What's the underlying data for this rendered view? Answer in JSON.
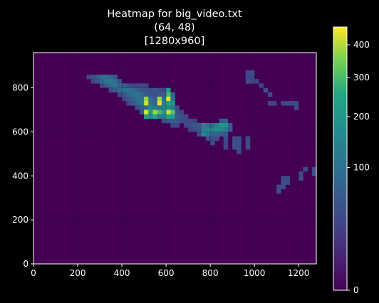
{
  "chart_data": {
    "type": "heatmap",
    "title_lines": [
      "Heatmap for big_video.txt",
      "(64, 48)",
      "[1280x960]"
    ],
    "grid_shape": [
      64,
      48
    ],
    "xlim": [
      0,
      1280
    ],
    "ylim": [
      0,
      960
    ],
    "x_ticks": [
      0,
      200,
      400,
      600,
      800,
      1000,
      1200
    ],
    "y_ticks": [
      0,
      200,
      400,
      600,
      800
    ],
    "colorbar": {
      "scale": "sqrt",
      "range": [
        0,
        460
      ],
      "ticks": [
        0,
        100,
        200,
        300,
        400
      ],
      "colormap": "viridis"
    },
    "grid": true,
    "background_value": 0,
    "cells": [
      [
        240,
        840,
        30
      ],
      [
        260,
        840,
        45
      ],
      [
        280,
        840,
        60
      ],
      [
        300,
        840,
        90
      ],
      [
        320,
        840,
        100
      ],
      [
        340,
        840,
        80
      ],
      [
        360,
        840,
        50
      ],
      [
        260,
        820,
        30
      ],
      [
        280,
        820,
        50
      ],
      [
        300,
        820,
        80
      ],
      [
        320,
        820,
        110
      ],
      [
        340,
        820,
        120
      ],
      [
        360,
        820,
        90
      ],
      [
        380,
        820,
        40
      ],
      [
        300,
        800,
        40
      ],
      [
        320,
        800,
        60
      ],
      [
        340,
        800,
        90
      ],
      [
        360,
        800,
        110
      ],
      [
        380,
        800,
        80
      ],
      [
        400,
        800,
        60
      ],
      [
        420,
        800,
        40
      ],
      [
        440,
        800,
        30
      ],
      [
        460,
        800,
        30
      ],
      [
        480,
        800,
        30
      ],
      [
        500,
        800,
        30
      ],
      [
        340,
        780,
        40
      ],
      [
        360,
        780,
        60
      ],
      [
        380,
        780,
        90
      ],
      [
        400,
        780,
        100
      ],
      [
        420,
        780,
        110
      ],
      [
        440,
        780,
        90
      ],
      [
        460,
        780,
        70
      ],
      [
        480,
        780,
        50
      ],
      [
        500,
        780,
        50
      ],
      [
        520,
        780,
        40
      ],
      [
        540,
        780,
        60
      ],
      [
        560,
        780,
        40
      ],
      [
        580,
        780,
        30
      ],
      [
        600,
        780,
        220
      ],
      [
        380,
        760,
        40
      ],
      [
        400,
        760,
        50
      ],
      [
        420,
        760,
        80
      ],
      [
        440,
        760,
        100
      ],
      [
        460,
        760,
        110
      ],
      [
        480,
        760,
        90
      ],
      [
        500,
        760,
        60
      ],
      [
        520,
        760,
        50
      ],
      [
        540,
        760,
        40
      ],
      [
        560,
        760,
        50
      ],
      [
        580,
        760,
        60
      ],
      [
        600,
        760,
        300
      ],
      [
        620,
        760,
        80
      ],
      [
        400,
        740,
        30
      ],
      [
        420,
        740,
        50
      ],
      [
        440,
        740,
        70
      ],
      [
        460,
        740,
        90
      ],
      [
        480,
        740,
        100
      ],
      [
        500,
        740,
        380
      ],
      [
        520,
        740,
        90
      ],
      [
        540,
        740,
        60
      ],
      [
        560,
        740,
        380
      ],
      [
        580,
        740,
        100
      ],
      [
        600,
        740,
        440
      ],
      [
        620,
        740,
        100
      ],
      [
        420,
        720,
        30
      ],
      [
        440,
        720,
        50
      ],
      [
        460,
        720,
        80
      ],
      [
        480,
        720,
        120
      ],
      [
        500,
        720,
        420
      ],
      [
        520,
        720,
        110
      ],
      [
        540,
        720,
        70
      ],
      [
        560,
        720,
        440
      ],
      [
        580,
        720,
        130
      ],
      [
        600,
        720,
        240
      ],
      [
        620,
        720,
        200
      ],
      [
        460,
        700,
        40
      ],
      [
        480,
        700,
        60
      ],
      [
        500,
        700,
        90
      ],
      [
        520,
        700,
        150
      ],
      [
        540,
        700,
        110
      ],
      [
        560,
        700,
        100
      ],
      [
        580,
        700,
        140
      ],
      [
        600,
        700,
        170
      ],
      [
        620,
        700,
        120
      ],
      [
        640,
        700,
        40
      ],
      [
        480,
        680,
        50
      ],
      [
        500,
        680,
        430
      ],
      [
        520,
        680,
        200
      ],
      [
        540,
        680,
        380
      ],
      [
        560,
        680,
        300
      ],
      [
        580,
        680,
        200
      ],
      [
        600,
        680,
        420
      ],
      [
        620,
        680,
        320
      ],
      [
        640,
        680,
        40
      ],
      [
        660,
        680,
        30
      ],
      [
        500,
        660,
        230
      ],
      [
        520,
        660,
        160
      ],
      [
        540,
        660,
        240
      ],
      [
        560,
        660,
        130
      ],
      [
        580,
        660,
        120
      ],
      [
        600,
        660,
        250
      ],
      [
        620,
        660,
        220
      ],
      [
        640,
        660,
        60
      ],
      [
        660,
        660,
        40
      ],
      [
        680,
        660,
        30
      ],
      [
        580,
        640,
        40
      ],
      [
        600,
        640,
        50
      ],
      [
        620,
        640,
        60
      ],
      [
        640,
        640,
        50
      ],
      [
        660,
        640,
        40
      ],
      [
        680,
        640,
        30
      ],
      [
        700,
        640,
        30
      ],
      [
        720,
        640,
        30
      ],
      [
        840,
        640,
        60
      ],
      [
        860,
        640,
        60
      ],
      [
        620,
        620,
        30
      ],
      [
        640,
        620,
        40
      ],
      [
        680,
        620,
        30
      ],
      [
        700,
        620,
        40
      ],
      [
        720,
        620,
        50
      ],
      [
        740,
        620,
        60
      ],
      [
        760,
        620,
        140
      ],
      [
        780,
        620,
        100
      ],
      [
        800,
        620,
        90
      ],
      [
        820,
        620,
        140
      ],
      [
        840,
        620,
        200
      ],
      [
        860,
        620,
        180
      ],
      [
        880,
        620,
        60
      ],
      [
        700,
        600,
        30
      ],
      [
        720,
        600,
        40
      ],
      [
        740,
        600,
        50
      ],
      [
        760,
        600,
        130
      ],
      [
        780,
        600,
        150
      ],
      [
        800,
        600,
        140
      ],
      [
        820,
        600,
        180
      ],
      [
        840,
        600,
        160
      ],
      [
        860,
        600,
        120
      ],
      [
        880,
        600,
        60
      ],
      [
        740,
        580,
        40
      ],
      [
        760,
        580,
        170
      ],
      [
        780,
        580,
        110
      ],
      [
        800,
        580,
        80
      ],
      [
        820,
        580,
        70
      ],
      [
        840,
        580,
        60
      ],
      [
        860,
        580,
        50
      ],
      [
        780,
        560,
        40
      ],
      [
        800,
        560,
        40
      ],
      [
        820,
        560,
        40
      ],
      [
        860,
        560,
        40
      ],
      [
        900,
        560,
        40
      ],
      [
        920,
        560,
        40
      ],
      [
        960,
        560,
        40
      ],
      [
        800,
        540,
        40
      ],
      [
        860,
        540,
        30
      ],
      [
        900,
        540,
        40
      ],
      [
        920,
        540,
        40
      ],
      [
        960,
        540,
        40
      ],
      [
        860,
        520,
        30
      ],
      [
        900,
        520,
        40
      ],
      [
        920,
        520,
        40
      ],
      [
        960,
        520,
        40
      ],
      [
        920,
        500,
        40
      ],
      [
        960,
        860,
        40
      ],
      [
        980,
        860,
        40
      ],
      [
        960,
        840,
        30
      ],
      [
        980,
        840,
        40
      ],
      [
        960,
        820,
        40
      ],
      [
        980,
        820,
        30
      ],
      [
        1000,
        820,
        30
      ],
      [
        1020,
        800,
        30
      ],
      [
        1040,
        780,
        40
      ],
      [
        1060,
        760,
        30
      ],
      [
        1060,
        720,
        30
      ],
      [
        1080,
        720,
        30
      ],
      [
        1120,
        720,
        30
      ],
      [
        1140,
        720,
        40
      ],
      [
        1160,
        720,
        30
      ],
      [
        1180,
        720,
        30
      ],
      [
        1180,
        700,
        40
      ],
      [
        1220,
        420,
        40
      ],
      [
        1260,
        420,
        40
      ],
      [
        1200,
        400,
        40
      ],
      [
        1260,
        400,
        40
      ],
      [
        1120,
        380,
        40
      ],
      [
        1140,
        380,
        40
      ],
      [
        1200,
        380,
        40
      ],
      [
        1120,
        360,
        40
      ],
      [
        1140,
        360,
        40
      ],
      [
        1100,
        340,
        40
      ],
      [
        1120,
        340,
        40
      ],
      [
        1100,
        320,
        40
      ]
    ]
  }
}
